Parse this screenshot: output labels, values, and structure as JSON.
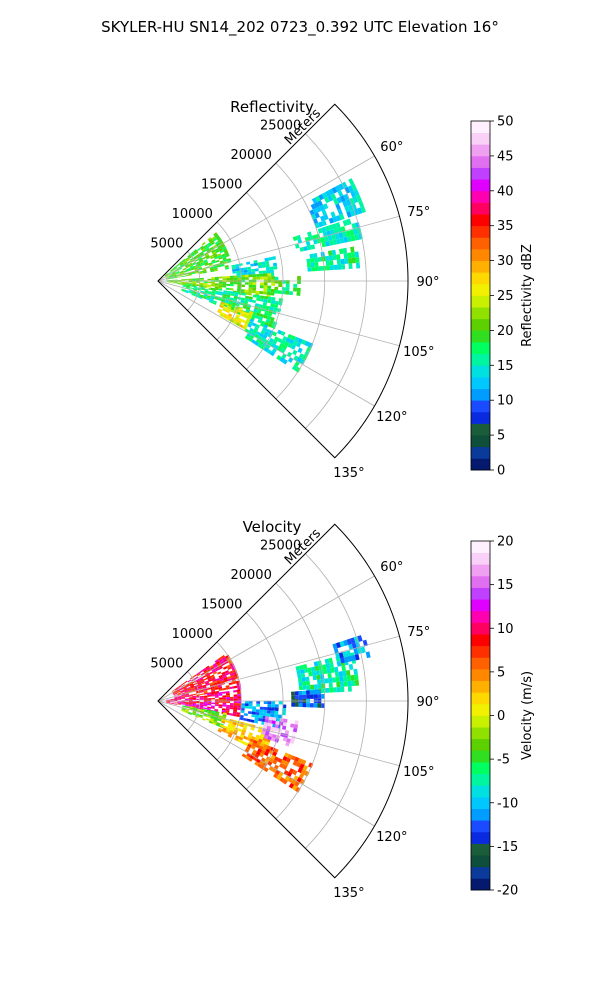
{
  "title": "SKYLER-HU  SN14_202  0723_0.392 UTC Elevation 16°",
  "chart_data": [
    {
      "type": "heatmap",
      "projection": "polar-sector",
      "title": "Reflectivity",
      "range_axis_label": "Meters",
      "range_ticks": [
        5000,
        10000,
        15000,
        20000,
        25000
      ],
      "range_tick_labels": [
        "5000",
        "10000",
        "15000",
        "20000",
        "25000"
      ],
      "range_max": 30000,
      "azimuth_range_deg": [
        45,
        135
      ],
      "azimuth_ticks_deg": [
        60,
        75,
        90,
        105,
        120,
        135
      ],
      "azimuth_tick_labels": [
        "60°",
        "75°",
        "90°",
        "105°",
        "120°",
        "135°"
      ],
      "grid": true,
      "colorbar": {
        "label": "Reflectivity dBZ",
        "min": 0,
        "max": 50,
        "ticks": [
          0,
          5,
          10,
          15,
          20,
          25,
          30,
          35,
          40,
          45,
          50
        ],
        "tick_labels": [
          "0",
          "5",
          "10",
          "15",
          "20",
          "25",
          "30",
          "35",
          "40",
          "45",
          "50"
        ],
        "colors": [
          "#051a6e",
          "#0a3a9a",
          "#0f4e3a",
          "#1b5c3a",
          "#0a2adf",
          "#1a4bff",
          "#009cff",
          "#00c8ff",
          "#00e0e0",
          "#00f5a0",
          "#00ff60",
          "#30e020",
          "#5cd000",
          "#90e000",
          "#c8f000",
          "#f0f000",
          "#ffd800",
          "#ffb000",
          "#ff8800",
          "#ff6000",
          "#ff3000",
          "#ff0000",
          "#ff0060",
          "#ff00b0",
          "#e000ff",
          "#c040ff",
          "#e070f0",
          "#f0a0f0",
          "#f8d0f8",
          "#fff0ff"
        ]
      },
      "echo_regions": [
        {
          "az": [
            50,
            80
          ],
          "range": [
            1000,
            9000
          ],
          "value": 20
        },
        {
          "az": [
            78,
            86
          ],
          "range": [
            9000,
            14000
          ],
          "value": 14
        },
        {
          "az": [
            86,
            98
          ],
          "range": [
            1000,
            14000
          ],
          "value": 21
        },
        {
          "az": [
            88,
            95
          ],
          "range": [
            14000,
            17000
          ],
          "value": 18
        },
        {
          "az": [
            98,
            112
          ],
          "range": [
            3000,
            15000
          ],
          "value": 17
        },
        {
          "az": [
            108,
            118
          ],
          "range": [
            8000,
            12000
          ],
          "value": 26
        },
        {
          "az": [
            112,
            122
          ],
          "range": [
            12000,
            20000
          ],
          "value": 15
        },
        {
          "az": [
            72,
            78
          ],
          "range": [
            17000,
            25000
          ],
          "value": 15
        },
        {
          "az": [
            62,
            70
          ],
          "range": [
            20000,
            26000
          ],
          "value": 13
        },
        {
          "az": [
            80,
            86
          ],
          "range": [
            18000,
            24000
          ],
          "value": 16
        }
      ]
    },
    {
      "type": "heatmap",
      "projection": "polar-sector",
      "title": "Velocity",
      "range_axis_label": "Meters",
      "range_ticks": [
        5000,
        10000,
        15000,
        20000,
        25000
      ],
      "range_tick_labels": [
        "5000",
        "10000",
        "15000",
        "20000",
        "25000"
      ],
      "range_max": 30000,
      "azimuth_range_deg": [
        45,
        135
      ],
      "azimuth_ticks_deg": [
        60,
        75,
        90,
        105,
        120,
        135
      ],
      "azimuth_tick_labels": [
        "60°",
        "75°",
        "90°",
        "105°",
        "120°",
        "135°"
      ],
      "grid": true,
      "colorbar": {
        "label": "Velocity (m/s)",
        "min": -20,
        "max": 20,
        "ticks": [
          -20,
          -15,
          -10,
          -5,
          0,
          5,
          10,
          15,
          20
        ],
        "tick_labels": [
          "-20",
          "-15",
          "-10",
          "-5",
          "0",
          "5",
          "10",
          "15",
          "20"
        ],
        "colors": [
          "#051a6e",
          "#0a3a9a",
          "#0f4e3a",
          "#1b5c3a",
          "#0a2adf",
          "#1a4bff",
          "#009cff",
          "#00c8ff",
          "#00e0e0",
          "#00f5a0",
          "#00ff60",
          "#30e020",
          "#5cd000",
          "#90e000",
          "#c8f000",
          "#f0f000",
          "#ffd800",
          "#ffb000",
          "#ff8800",
          "#ff6000",
          "#ff3000",
          "#ff0000",
          "#ff0060",
          "#ff00b0",
          "#e000ff",
          "#c040ff",
          "#e070f0",
          "#f0a0f0",
          "#f8d0f8",
          "#fff0ff"
        ]
      },
      "echo_regions": [
        {
          "az": [
            55,
            82
          ],
          "range": [
            2000,
            10000
          ],
          "value": 9
        },
        {
          "az": [
            82,
            100
          ],
          "range": [
            1000,
            10000
          ],
          "value": 10
        },
        {
          "az": [
            90,
            102
          ],
          "range": [
            10000,
            15000
          ],
          "value": -11
        },
        {
          "az": [
            100,
            112
          ],
          "range": [
            3000,
            8000
          ],
          "value": -3
        },
        {
          "az": [
            104,
            116
          ],
          "range": [
            8000,
            14000
          ],
          "value": 3
        },
        {
          "az": [
            98,
            108
          ],
          "range": [
            13000,
            17000
          ],
          "value": 16
        },
        {
          "az": [
            112,
            122
          ],
          "range": [
            12000,
            20000
          ],
          "value": 6
        },
        {
          "az": [
            76,
            86
          ],
          "range": [
            17000,
            24000
          ],
          "value": -7
        },
        {
          "az": [
            72,
            78
          ],
          "range": [
            22000,
            26000
          ],
          "value": -11
        },
        {
          "az": [
            86,
            92
          ],
          "range": [
            16000,
            20000
          ],
          "value": -13
        }
      ]
    }
  ]
}
